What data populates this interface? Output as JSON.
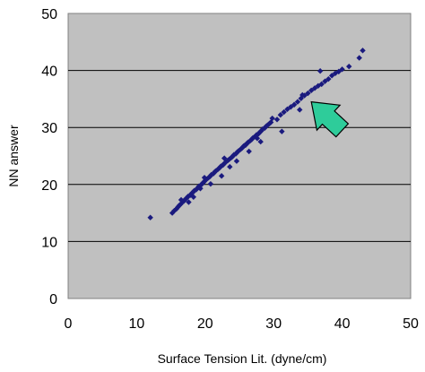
{
  "chart_data": {
    "type": "scatter",
    "title": "",
    "xlabel": "Surface Tension Lit. (dyne/cm)",
    "ylabel": "NN answer",
    "xlim": [
      0,
      50
    ],
    "ylim": [
      0,
      50
    ],
    "xticks": [
      "0",
      "10",
      "20",
      "30",
      "40",
      "50"
    ],
    "yticks": [
      "0",
      "10",
      "20",
      "30",
      "40",
      "50"
    ],
    "grid": "horizontal",
    "legend": "none",
    "colors": {
      "plot_background": "#c0c0c0",
      "marker": "#1a1a7e",
      "arrow_fill": "#2ecc9a",
      "arrow_stroke": "#000000",
      "gridline": "#000000"
    },
    "marker_shape": "diamond",
    "annotation": {
      "type": "arrow",
      "tip": [
        35.5,
        34.5
      ],
      "tail": [
        40,
        29.5
      ],
      "color": "#2ecc9a"
    },
    "series": [
      {
        "name": "",
        "x": [
          12,
          15.2,
          15.5,
          15.8,
          16,
          16.2,
          16.4,
          16.7,
          16.9,
          17.1,
          17.3,
          17.5,
          17.8,
          18,
          18.2,
          18.4,
          18.7,
          18.9,
          19.1,
          19.4,
          19.6,
          19.8,
          20,
          20.2,
          20.5,
          20.7,
          20.9,
          21.2,
          21.4,
          21.6,
          21.9,
          22.1,
          22.3,
          22.6,
          22.8,
          23,
          23.3,
          23.5,
          23.8,
          24,
          24.2,
          24.5,
          24.7,
          24.9,
          25.2,
          25.4,
          25.6,
          25.9,
          26.1,
          26.3,
          26.6,
          26.8,
          27,
          27.3,
          27.5,
          27.8,
          28,
          28.2,
          28.4,
          28.7,
          28.9,
          29.1,
          29.4,
          29.6,
          30.5,
          31,
          31.5,
          32,
          32.5,
          33,
          33.5,
          34,
          34.5,
          35,
          35.5,
          36,
          36.5,
          37,
          37.5,
          38,
          38.5,
          39,
          39.5,
          40,
          41,
          42.5,
          43,
          16.5,
          18.3,
          20.8,
          22.4,
          24.6,
          26.4,
          28.1,
          29.8,
          31.2,
          33.8,
          36.8,
          17.6,
          19.9,
          21.5,
          23.6,
          25.7,
          27.6,
          19.3,
          22.8,
          26.2,
          34.2
        ],
        "y": [
          14.2,
          15,
          15.4,
          15.7,
          16,
          16.3,
          16.5,
          16.9,
          17.1,
          17.4,
          17.6,
          17.9,
          18.1,
          18.4,
          18.6,
          18.9,
          19.1,
          19.4,
          19.7,
          19.9,
          20.2,
          20.4,
          20.7,
          20.9,
          21.2,
          21.4,
          21.7,
          21.9,
          22.2,
          22.4,
          22.7,
          22.9,
          23.2,
          23.4,
          23.7,
          23.9,
          24.2,
          24.4,
          24.7,
          24.9,
          25.2,
          25.4,
          25.7,
          25.9,
          26.2,
          26.4,
          26.7,
          26.9,
          27.2,
          27.4,
          27.7,
          27.9,
          28.2,
          28.4,
          28.7,
          28.9,
          29.2,
          29.4,
          29.7,
          29.9,
          30.2,
          30.4,
          30.7,
          30.9,
          31.4,
          32.2,
          32.7,
          33.2,
          33.6,
          34,
          34.5,
          35.1,
          35.6,
          36,
          36.5,
          36.9,
          37.3,
          37.6,
          38.1,
          38.5,
          39.1,
          39.5,
          39.8,
          40.2,
          40.7,
          42.2,
          43.5,
          17.3,
          17.8,
          20.1,
          21.5,
          24.1,
          25.8,
          27.5,
          31.6,
          29.3,
          33.1,
          39.9,
          16.9,
          21.2,
          22.3,
          23.1,
          26.8,
          28.1,
          19.3,
          24.6,
          27.3,
          35.7
        ]
      }
    ]
  }
}
